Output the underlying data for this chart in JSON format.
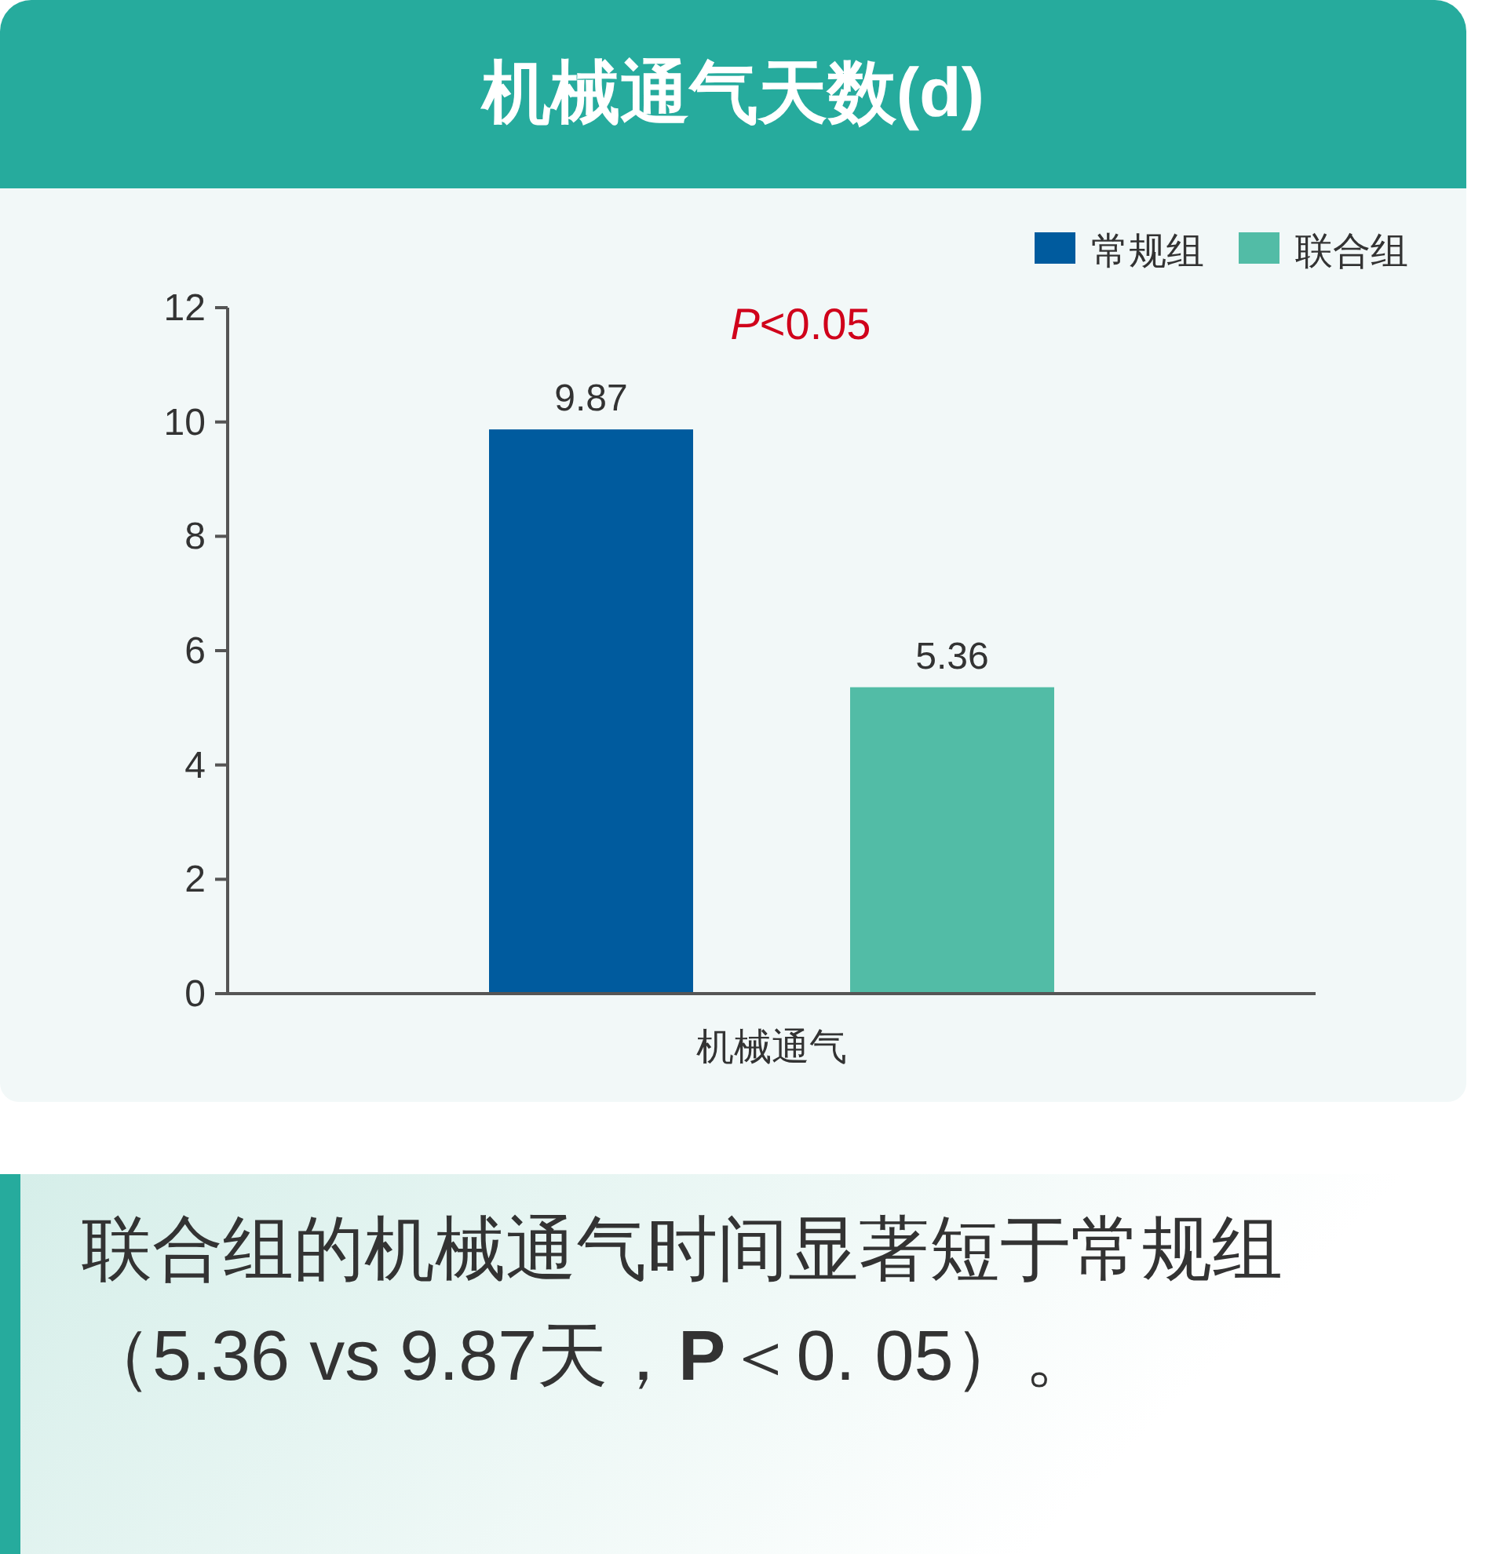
{
  "chart_data": {
    "type": "bar",
    "title": "机械通气天数(d)",
    "categories": [
      "机械通气"
    ],
    "series": [
      {
        "name": "常规组",
        "color": "#005b9e",
        "values": [
          9.87
        ]
      },
      {
        "name": "联合组",
        "color": "#52bca6",
        "values": [
          5.36
        ]
      }
    ],
    "ylim": [
      0,
      12
    ],
    "yticks": [
      0,
      2,
      4,
      6,
      8,
      10,
      12
    ],
    "data_labels": true,
    "legend": "top right",
    "grid": false,
    "annotations": [
      "*P*<0.05",
      "联合组的机械通气时间显著短于常规组（5.36 vs 9.87天，**P**＜0. 05）。"
    ]
  }
}
